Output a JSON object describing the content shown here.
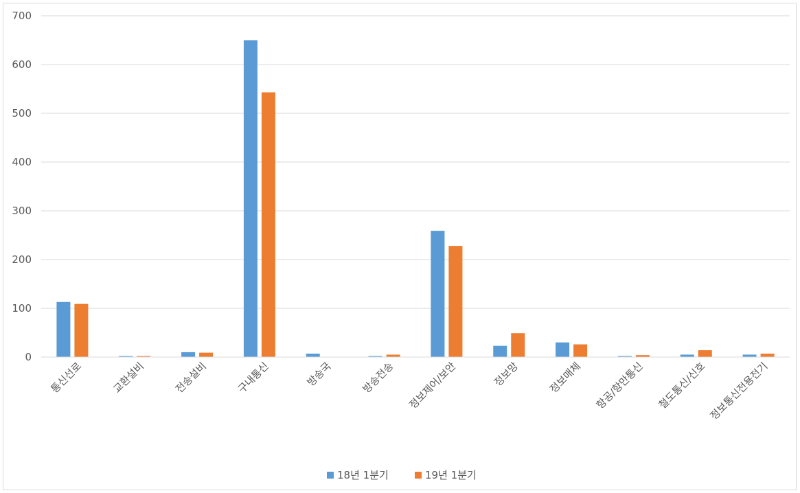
{
  "chart_data": {
    "type": "bar",
    "categories": [
      "통신선로",
      "교환설비",
      "전송설비",
      "구내통신",
      "방송국",
      "방송전송",
      "정보제어/보안",
      "정보망",
      "정보매체",
      "항공/항만통신",
      "철도통신/신호",
      "정보통신전용전기"
    ],
    "series": [
      {
        "name": "18년 1분기",
        "color": "#5b9bd5",
        "values": [
          113,
          2,
          10,
          650,
          7,
          2,
          259,
          23,
          30,
          2,
          5,
          5
        ]
      },
      {
        "name": "19년 1분기",
        "color": "#ed7d31",
        "values": [
          109,
          2,
          9,
          543,
          0,
          5,
          228,
          49,
          26,
          4,
          14,
          7
        ]
      }
    ],
    "yticks": [
      0,
      100,
      200,
      300,
      400,
      500,
      600,
      700
    ],
    "ylim": [
      0,
      700
    ],
    "grid": true,
    "legend": "bottom",
    "title": "",
    "xlabel": "",
    "ylabel": ""
  }
}
